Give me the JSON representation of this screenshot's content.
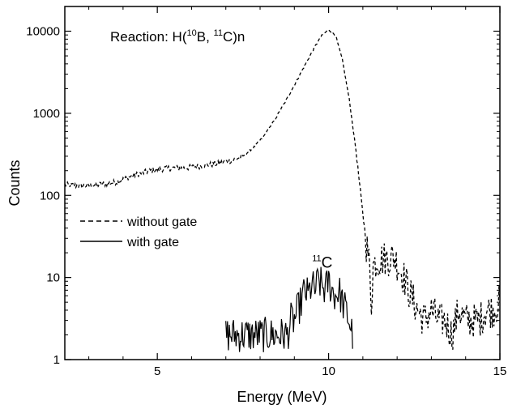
{
  "chart_data": {
    "type": "line",
    "title": "",
    "xlabel": "Energy (MeV)",
    "ylabel": "Counts",
    "xlim": [
      2.3,
      15
    ],
    "ylim": [
      1,
      20000
    ],
    "yscale": "log",
    "x_ticks": [
      5,
      10,
      15
    ],
    "x_tick_labels": [
      "5",
      "10",
      "15"
    ],
    "y_ticks": [
      1,
      10,
      100,
      1000,
      10000
    ],
    "y_tick_labels": [
      "1",
      "10",
      "100",
      "1000",
      "10000"
    ],
    "grid": false,
    "legend_position": "middle-left",
    "annotations": {
      "reaction": {
        "prefix": "Reaction: H(",
        "sup1": "10",
        "mid": "B, ",
        "sup2": "11",
        "suffix": "C)n"
      },
      "peak_label": {
        "sup": "11",
        "text": "C",
        "x": 9.85,
        "y": 11
      }
    },
    "series": [
      {
        "name": "without gate",
        "style": "dashed",
        "x": [
          2.3,
          2.8,
          3.3,
          3.8,
          4.3,
          4.8,
          5.3,
          5.8,
          6.3,
          6.8,
          7.2,
          7.5,
          7.8,
          8.1,
          8.4,
          8.7,
          9.0,
          9.3,
          9.6,
          9.8,
          10.0,
          10.2,
          10.4,
          10.6,
          10.8,
          10.95,
          11.05,
          11.1,
          11.15,
          11.2,
          11.25,
          11.3,
          11.4,
          11.6,
          11.8,
          11.9,
          12.0,
          12.2,
          12.4,
          12.6,
          12.8,
          13.0,
          13.2,
          13.4,
          13.6,
          13.8,
          14.0,
          14.2,
          14.4,
          14.6,
          14.8,
          15.0
        ],
        "values": [
          135,
          130,
          135,
          145,
          175,
          200,
          215,
          215,
          230,
          245,
          270,
          300,
          380,
          520,
          800,
          1300,
          2200,
          3800,
          6500,
          8800,
          10500,
          9000,
          4500,
          1500,
          350,
          90,
          40,
          25,
          20,
          12,
          5,
          14,
          16,
          17,
          17,
          18,
          15,
          10,
          6,
          4,
          3,
          4,
          3,
          3,
          2,
          4,
          3,
          3,
          3,
          4,
          4,
          5
        ]
      },
      {
        "name": "with gate",
        "style": "solid",
        "x": [
          7.0,
          7.6,
          8.3,
          8.5,
          8.7,
          8.8,
          8.9,
          9.0,
          9.1,
          9.2,
          9.3,
          9.4,
          9.5,
          9.6,
          9.7,
          9.8,
          9.9,
          10.0,
          10.1,
          10.2,
          10.3,
          10.4,
          10.5,
          10.6,
          10.7
        ],
        "values": [
          2,
          2,
          2,
          2,
          2,
          2,
          3,
          3,
          4,
          5,
          7,
          6,
          8,
          7,
          9,
          8,
          7,
          9,
          7,
          6,
          7,
          5,
          4,
          3,
          2
        ]
      }
    ]
  }
}
